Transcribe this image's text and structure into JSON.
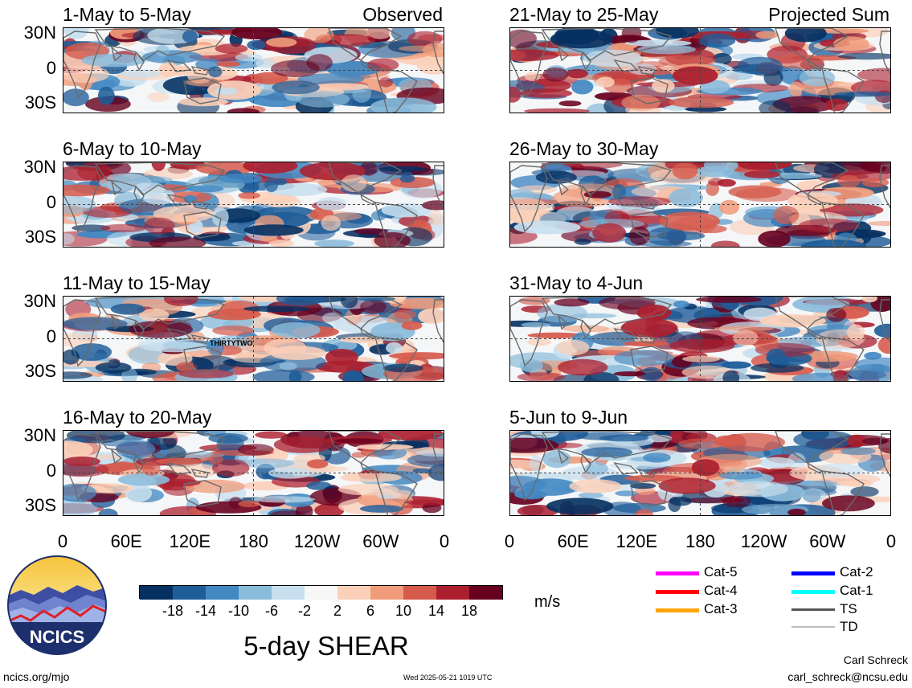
{
  "left_panels": [
    {
      "title": "1-May to 5-May",
      "label": "Observed"
    },
    {
      "title": "6-May to 10-May",
      "label": ""
    },
    {
      "title": "11-May to 15-May",
      "label": "",
      "storm": "THIRTYTWO"
    },
    {
      "title": "16-May to 20-May",
      "label": ""
    }
  ],
  "right_panels": [
    {
      "title": "21-May to 25-May",
      "label": "Projected Sum"
    },
    {
      "title": "26-May to 30-May",
      "label": ""
    },
    {
      "title": "31-May to 4-Jun",
      "label": ""
    },
    {
      "title": "5-Jun to 9-Jun",
      "label": ""
    }
  ],
  "lat_labels": [
    "30N",
    "0",
    "30S"
  ],
  "lon_labels": [
    "0",
    "60E",
    "120E",
    "180",
    "120W",
    "60W",
    "0"
  ],
  "colorbar": {
    "ticks": [
      "-18",
      "-14",
      "-10",
      "-6",
      "-2",
      "2",
      "6",
      "10",
      "14",
      "18"
    ],
    "colors": [
      "#053061",
      "#1f5d99",
      "#4288c2",
      "#8bbcdb",
      "#c7dfee",
      "#f7f7f7",
      "#fbd0b9",
      "#f09c7b",
      "#d65b4d",
      "#ac1f2f",
      "#67001f"
    ],
    "units": "m/s"
  },
  "legend": [
    {
      "label": "Cat-5",
      "color": "#ff00ff"
    },
    {
      "label": "Cat-4",
      "color": "#ff0000"
    },
    {
      "label": "Cat-3",
      "color": "#ffa500"
    },
    {
      "label": "Cat-2",
      "color": "#0000ff"
    },
    {
      "label": "Cat-1",
      "color": "#00ffff"
    },
    {
      "label": "TS",
      "color": "#555555"
    },
    {
      "label": "TD",
      "color": "#bbbbbb"
    }
  ],
  "logo_text": "NCICS",
  "main_title": "5-day SHEAR",
  "footer": {
    "url": "ncics.org/mjo",
    "timestamp": "Wed 2025-05-21 1019 UTC",
    "author": "Carl Schreck",
    "email": "carl_schreck@ncsu.edu"
  }
}
